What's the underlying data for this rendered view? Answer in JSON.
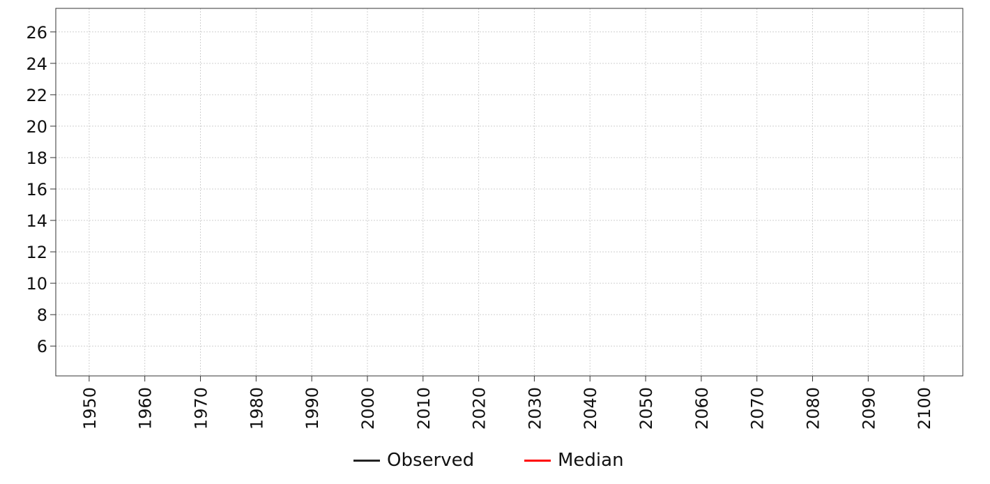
{
  "chart_data": {
    "type": "line",
    "title": "",
    "xlabel": "",
    "ylabel": "",
    "xlim": [
      1944,
      2107
    ],
    "ylim": [
      4.1,
      27.5
    ],
    "x_ticks": [
      "1950",
      "1960",
      "1970",
      "1980",
      "1990",
      "2000",
      "2010",
      "2020",
      "2030",
      "2040",
      "2050",
      "2060",
      "2070",
      "2080",
      "2090",
      "2100"
    ],
    "y_ticks": [
      "6",
      "8",
      "10",
      "12",
      "14",
      "16",
      "18",
      "20",
      "22",
      "24",
      "26"
    ],
    "grid": true,
    "legend_position": "bottom",
    "series": [
      {
        "name": "Observed",
        "color": "#222222",
        "x": [],
        "values": []
      },
      {
        "name": "Median",
        "color": "#ff0000",
        "x": [],
        "values": []
      }
    ]
  }
}
